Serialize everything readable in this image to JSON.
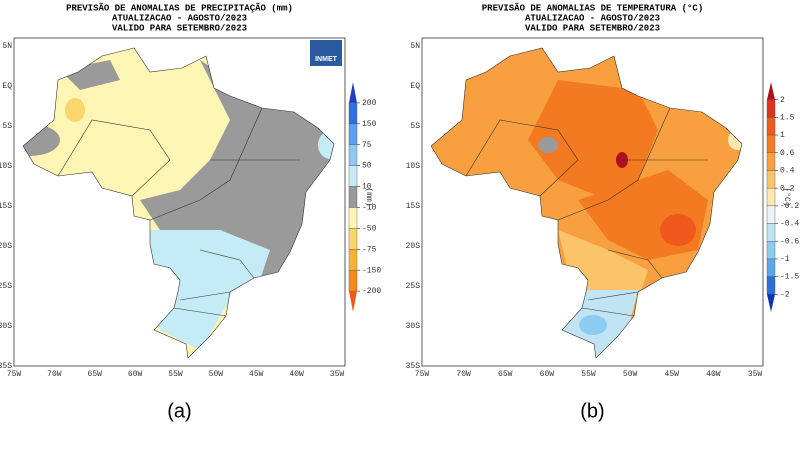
{
  "panels": [
    {
      "title": [
        "PREVISÃO DE ANOMALIAS DE PRECIPITAÇÃO (mm)",
        "ATUALIZACAO - AGOSTO/2023",
        "VALIDO PARA SETEMBRO/2023"
      ],
      "logo": "INMET",
      "y_labels": [
        "5N",
        "EQ",
        "5S",
        "10S",
        "15S",
        "20S",
        "25S",
        "30S",
        "35S"
      ],
      "x_labels": [
        "75W",
        "70W",
        "65W",
        "60W",
        "55W",
        "50W",
        "45W",
        "40W",
        "35W"
      ],
      "colorbar": {
        "unit": "(mm)",
        "ticks": [
          200,
          150,
          75,
          50,
          10,
          -10,
          -50,
          -75,
          -150,
          -200
        ],
        "colors": [
          "#1f3fbf",
          "#2f6fe0",
          "#5f9ff0",
          "#8fc8f5",
          "#c5ebf7",
          "#9a9a9a",
          "#fdf5b4",
          "#fbd66a",
          "#f9b232",
          "#f58a1e",
          "#ee5a12"
        ]
      },
      "caption": "(a)"
    },
    {
      "title": [
        "PREVISÃO DE ANOMALIAS DE TEMPERATURA (°C)",
        "ATUALIZACAO - AGOSTO/2023",
        "VALIDO PARA SETEMBRO/2023"
      ],
      "y_labels": [
        "5N",
        "EQ",
        "5S",
        "10S",
        "15S",
        "20S",
        "25S",
        "30S",
        "35S"
      ],
      "x_labels": [
        "75W",
        "70W",
        "65W",
        "60W",
        "55W",
        "50W",
        "45W",
        "40W",
        "35W"
      ],
      "colorbar": {
        "unit": "(°C)",
        "ticks": [
          2,
          1.5,
          1,
          0.6,
          0.4,
          0.2,
          -0.2,
          -0.4,
          -0.6,
          -1,
          -1.5,
          -2
        ],
        "colors": [
          "#b0101a",
          "#e0301e",
          "#f0581e",
          "#f47a22",
          "#f8a040",
          "#fbc46a",
          "#fde8b0",
          "#e8f4f8",
          "#c0e4f4",
          "#8ecbf0",
          "#5aa8e8",
          "#2a6fd8",
          "#1030b0"
        ]
      },
      "caption": "(b)"
    }
  ]
}
